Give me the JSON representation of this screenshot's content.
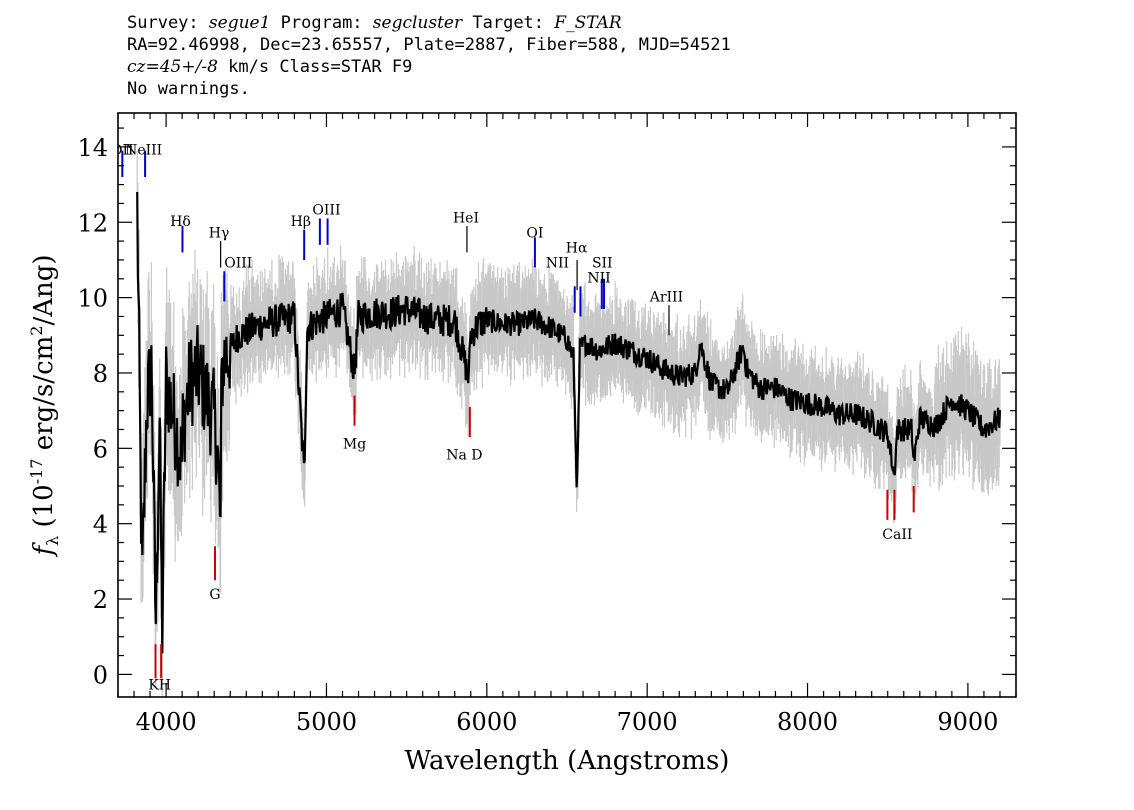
{
  "header": {
    "survey_label": "Survey:",
    "survey": "segue1",
    "program_label": "Program:",
    "program": "segcluster",
    "target_label": "Target:",
    "target": "F_STAR",
    "line2": "RA=92.46998, Dec=23.65557, Plate=2887, Fiber=588, MJD=54521",
    "cz_label": "cz=45+/-8",
    "cz_unit_class": "km/s Class=STAR F9",
    "line4": "No warnings."
  },
  "chart_data": {
    "type": "line",
    "xlabel": "Wavelength (Angstroms)",
    "ylabel": "f_λ (10^-17 erg/s/cm^2/Ang)",
    "ylabel_parts": {
      "f": "f",
      "sub": "λ",
      "pre": "(10",
      "exp": "-17",
      "mid": " erg/s/cm",
      "exp2": "2",
      "post": "/Ang)"
    },
    "xlim": [
      3700,
      9300
    ],
    "ylim": [
      -0.6,
      14.9
    ],
    "x_ticks": [
      4000,
      5000,
      6000,
      7000,
      8000,
      9000
    ],
    "y_ticks": [
      0,
      2,
      4,
      6,
      8,
      10,
      12,
      14
    ],
    "colors": {
      "flux": "#000000",
      "noise_band": "#c8c8c8",
      "emission": "#0000cc",
      "absorption": "#cc0000",
      "sky": "#000000"
    },
    "flux_series": {
      "name": "",
      "x": [
        3820,
        3850,
        3880,
        3910,
        3935,
        3960,
        3975,
        4000,
        4050,
        4100,
        4102,
        4150,
        4200,
        4250,
        4300,
        4320,
        4340,
        4345,
        4360,
        4400,
        4450,
        4500,
        4600,
        4700,
        4800,
        4861,
        4880,
        4950,
        5000,
        5100,
        5175,
        5200,
        5300,
        5400,
        5500,
        5600,
        5700,
        5800,
        5890,
        5895,
        5950,
        6000,
        6100,
        6200,
        6300,
        6400,
        6500,
        6540,
        6563,
        6580,
        6620,
        6700,
        6800,
        6900,
        7000,
        7100,
        7200,
        7300,
        7330,
        7400,
        7500,
        7600,
        7620,
        7700,
        7800,
        7900,
        8000,
        8100,
        8200,
        8300,
        8400,
        8500,
        8540,
        8560,
        8600,
        8650,
        8662,
        8700,
        8800,
        8900,
        9000,
        9100,
        9200
      ],
      "y": [
        12.4,
        2.3,
        7.2,
        8.2,
        1.3,
        6.8,
        1.0,
        7.8,
        6.8,
        5.6,
        6.5,
        7.8,
        8.0,
        7.4,
        6.8,
        6.0,
        3.8,
        7.8,
        8.4,
        8.6,
        9.0,
        9.1,
        9.3,
        9.4,
        9.5,
        5.3,
        9.2,
        9.4,
        9.5,
        9.7,
        8.0,
        9.5,
        9.6,
        9.6,
        9.7,
        9.5,
        9.4,
        9.4,
        7.8,
        9.0,
        9.3,
        9.4,
        9.3,
        9.3,
        9.4,
        9.2,
        8.9,
        8.4,
        4.8,
        8.6,
        8.8,
        8.6,
        8.8,
        8.6,
        8.4,
        8.1,
        7.9,
        8.0,
        8.8,
        7.7,
        7.5,
        8.7,
        8.1,
        7.6,
        7.6,
        7.3,
        7.2,
        7.1,
        6.9,
        6.9,
        6.7,
        6.4,
        5.3,
        6.5,
        6.5,
        6.5,
        5.6,
        6.8,
        6.6,
        7.3,
        7.0,
        6.5,
        6.8
      ],
      "noise_sigma": 0.9
    },
    "line_markers": [
      {
        "label": "OII",
        "x": 3727,
        "type": "emission",
        "y0": 13.2,
        "y1": 13.9,
        "lx": 3727,
        "ly": 13.8
      },
      {
        "label": "NeIII",
        "x": 3869,
        "type": "emission",
        "y0": 13.2,
        "y1": 13.9,
        "lx": 3860,
        "ly": 13.8
      },
      {
        "label": "Hδ",
        "x": 4102,
        "type": "emission",
        "y0": 11.2,
        "y1": 11.9,
        "lx": 4090,
        "ly": 11.9
      },
      {
        "label": "Hγ",
        "x": 4340,
        "type": "sky",
        "y0": 10.8,
        "y1": 11.5,
        "lx": 4330,
        "ly": 11.6
      },
      {
        "label": "OIII",
        "x": 4363,
        "type": "emission",
        "y0": 9.9,
        "y1": 10.7,
        "lx": 4450,
        "ly": 10.8
      },
      {
        "label": "Hβ",
        "x": 4861,
        "type": "emission",
        "y0": 11.0,
        "y1": 11.8,
        "lx": 4840,
        "ly": 11.9
      },
      {
        "label": "OIII",
        "x": 4959,
        "type": "emission",
        "y0": 11.4,
        "y1": 12.1,
        "lx": 5000,
        "ly": 12.2
      },
      {
        "label": "OIII",
        "x": 5007,
        "type": "emission",
        "y0": 11.4,
        "y1": 12.1,
        "lx": null,
        "ly": null
      },
      {
        "label": "HeI",
        "x": 5876,
        "type": "sky",
        "y0": 11.2,
        "y1": 11.9,
        "lx": 5870,
        "ly": 12.0
      },
      {
        "label": "OI",
        "x": 6300,
        "type": "emission",
        "y0": 10.8,
        "y1": 11.6,
        "lx": 6300,
        "ly": 11.6
      },
      {
        "label": "NII",
        "x": 6548,
        "type": "emission",
        "y0": 9.6,
        "y1": 10.3,
        "lx": 6440,
        "ly": 10.8
      },
      {
        "label": "Hα",
        "x": 6563,
        "type": "sky",
        "y0": 10.2,
        "y1": 11.0,
        "lx": 6560,
        "ly": 11.2
      },
      {
        "label": "NII",
        "x": 6584,
        "type": "emission",
        "y0": 9.5,
        "y1": 10.3,
        "lx": null,
        "ly": null
      },
      {
        "label": "SII",
        "x": 6717,
        "type": "emission",
        "y0": 9.7,
        "y1": 10.5,
        "lx": 6720,
        "ly": 10.8
      },
      {
        "label": "NII",
        "x": 6731,
        "type": "emission",
        "y0": 9.7,
        "y1": 10.5,
        "lx": 6700,
        "ly": 10.4
      },
      {
        "label": "ArIII",
        "x": 7136,
        "type": "sky",
        "y0": 9.0,
        "y1": 9.8,
        "lx": 7120,
        "ly": 9.9
      },
      {
        "label": "KH",
        "x": 3934,
        "type": "absorption",
        "y0": -0.1,
        "y1": 0.8,
        "lx": 3960,
        "ly": -0.4
      },
      {
        "label": "",
        "x": 3969,
        "type": "absorption",
        "y0": -0.1,
        "y1": 0.8,
        "lx": null,
        "ly": null
      },
      {
        "label": "G",
        "x": 4305,
        "type": "absorption",
        "y0": 2.5,
        "y1": 3.4,
        "lx": 4305,
        "ly": 2.0
      },
      {
        "label": "Mg",
        "x": 5175,
        "type": "absorption",
        "y0": 6.6,
        "y1": 7.4,
        "lx": 5175,
        "ly": 6.0
      },
      {
        "label": "Na D",
        "x": 5894,
        "type": "absorption",
        "y0": 6.3,
        "y1": 7.1,
        "lx": 5860,
        "ly": 5.7
      },
      {
        "label": "CaII",
        "x": 8498,
        "type": "absorption",
        "y0": 4.1,
        "y1": 4.9,
        "lx": 8560,
        "ly": 3.6
      },
      {
        "label": "",
        "x": 8542,
        "type": "absorption",
        "y0": 4.1,
        "y1": 4.9,
        "lx": null,
        "ly": null
      },
      {
        "label": "",
        "x": 8662,
        "type": "absorption",
        "y0": 4.3,
        "y1": 5.0,
        "lx": null,
        "ly": null
      }
    ]
  }
}
